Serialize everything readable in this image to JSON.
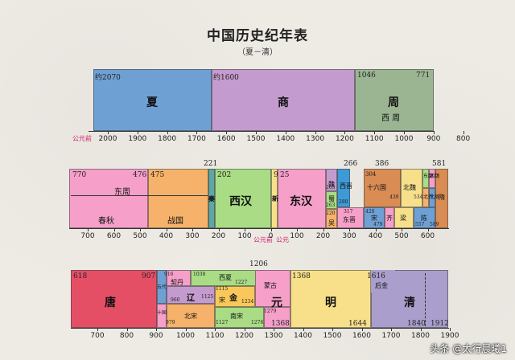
{
  "title": "中国历史纪年表",
  "subtitle": "（夏－清）",
  "era_marker_bc": "公元前",
  "era_marker_ad": "公元",
  "watermark": "头条 @太行晨曦1",
  "row1": {
    "axis_ticks": [
      "2000",
      "1900",
      "1800",
      "1700",
      "1600",
      "1500",
      "1400",
      "1300",
      "1200",
      "1100",
      "1000",
      "900",
      "800"
    ],
    "blocks": [
      {
        "name": "夏",
        "start_label": "约2070",
        "color": "#6fa0d4"
      },
      {
        "name": "商",
        "start_label": "约1600",
        "color": "#c49bcf"
      },
      {
        "name": "周",
        "sub": "西 周",
        "start_label": "1046",
        "end_label": "771",
        "color": "#9bb592"
      }
    ]
  },
  "row2": {
    "axis_ticks": [
      "700",
      "600",
      "500",
      "400",
      "300",
      "200",
      "100",
      "0",
      "100",
      "200",
      "300",
      "400",
      "500",
      "600"
    ],
    "labels": {
      "l770": "770",
      "l476": "476",
      "l475": "475",
      "l221": "221",
      "l202": "202",
      "l9": "9",
      "l25": "25",
      "l266": "266",
      "l304": "304",
      "l386": "386",
      "l581": "581",
      "l220": "220",
      "l280": "280",
      "l265": "265",
      "l263": "263",
      "l317": "317",
      "l420": "420",
      "l479": "479",
      "l439": "439",
      "l534": "534",
      "l557": "557",
      "l589": "589"
    },
    "names": {
      "dongzhou": "东周",
      "chunqiu": "春秋",
      "zhanguo": "战国",
      "qin": "秦",
      "xihan": "西汉",
      "xin": "新",
      "donghan": "东汉",
      "wei": "魏",
      "shu": "蜀",
      "wu": "吴",
      "xijin": "西晋",
      "dongjin": "东晋",
      "shiliuguo": "十六国",
      "song": "宋",
      "qi": "齐",
      "liang": "梁",
      "beiwei": "北魏",
      "dongwei": "东魏",
      "xiwei": "西魏",
      "bqi": "北齐",
      "bzhou": "北周",
      "chen": "陈",
      "sui": "隋"
    }
  },
  "row3": {
    "axis_ticks": [
      "700",
      "800",
      "900",
      "1000",
      "1100",
      "1200",
      "1300",
      "1400",
      "1500",
      "1600",
      "1700",
      "1800",
      "1900"
    ],
    "labels": {
      "l618": "618",
      "l907": "907",
      "l916": "916",
      "l960": "960",
      "l979": "979",
      "l1038": "1038",
      "l1115": "1115",
      "l1125": "1125",
      "l1127": "1127",
      "l1206": "1206",
      "l1227": "1227",
      "l1234": "1234",
      "l1276": "1276",
      "l1279": "1279",
      "l1368a": "1368",
      "l1368b": "1368",
      "l1616": "1616",
      "l1644": "1644",
      "l1840": "1840",
      "l1912": "1912"
    },
    "names": {
      "tang": "唐",
      "wudai": "五代",
      "shiguo": "十国",
      "qidan": "契丹",
      "liao": "辽",
      "beisong": "北宋",
      "xixia": "西夏",
      "jin": "金",
      "nansong": "南宋",
      "song": "宋",
      "menggu": "蒙古",
      "yuan": "元",
      "ming": "明",
      "houjin": "后金",
      "qing": "清"
    }
  }
}
